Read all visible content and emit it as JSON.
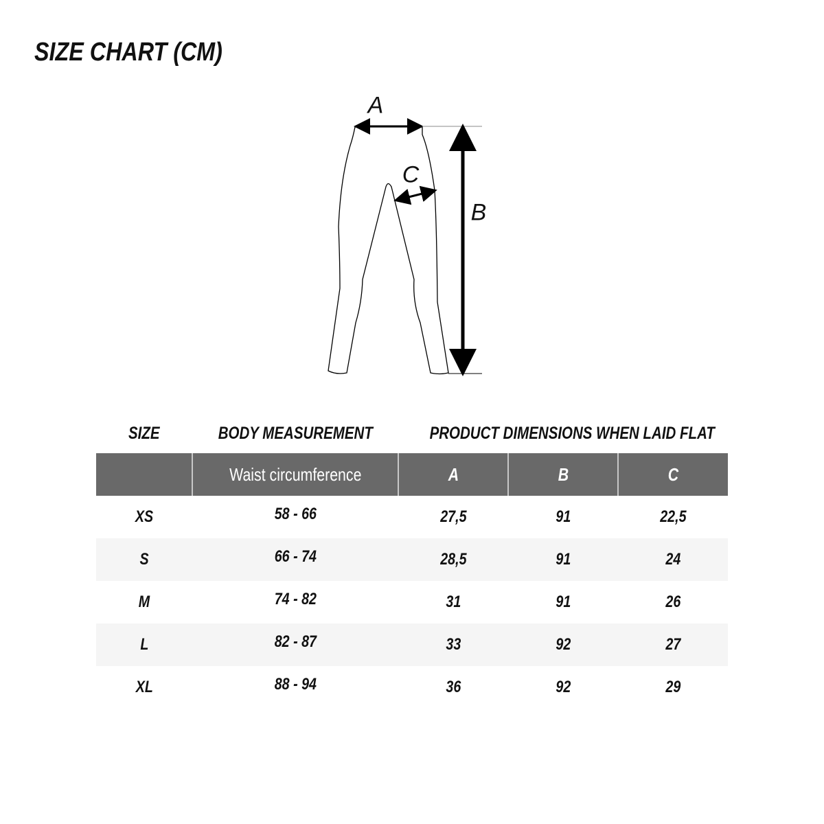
{
  "title": "SIZE CHART (CM)",
  "diagram": {
    "labels": {
      "a": "A",
      "b": "B",
      "c": "C"
    }
  },
  "table": {
    "section_headers": {
      "size": "SIZE",
      "body": "BODY MEASUREMENT",
      "product": "PRODUCT DIMENSIONS WHEN LAID FLAT"
    },
    "columns": [
      "",
      "Waist circumference",
      "A",
      "B",
      "C"
    ],
    "rows": [
      [
        "XS",
        "58 - 66",
        "27,5",
        "91",
        "22,5"
      ],
      [
        "S",
        "66 - 74",
        "28,5",
        "91",
        "24"
      ],
      [
        "M",
        "74 - 82",
        "31",
        "91",
        "26"
      ],
      [
        "L",
        "82 - 87",
        "33",
        "92",
        "27"
      ],
      [
        "XL",
        "88 - 94",
        "36",
        "92",
        "29"
      ]
    ],
    "colors": {
      "header_bg": "#696969",
      "alt_row_bg": "#f5f5f5"
    }
  }
}
